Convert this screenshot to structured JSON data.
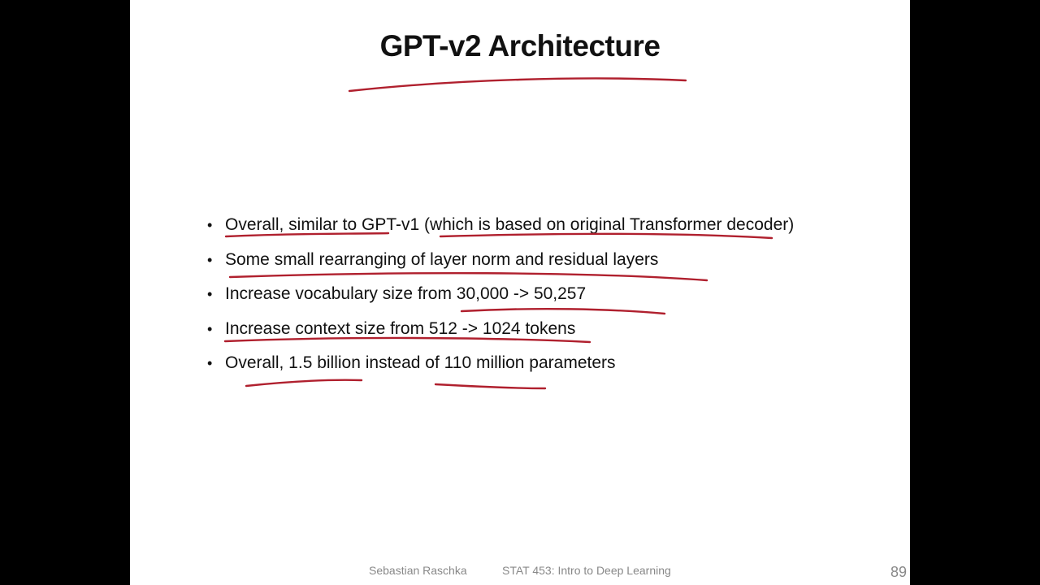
{
  "slide": {
    "title": "GPT-v2 Architecture",
    "bullets": [
      "Overall, similar to GPT-v1 (which is based on original Transformer decoder)",
      "Some small rearranging of layer norm and residual layers",
      "Increase vocabulary size from 30,000 -> 50,257",
      "Increase context size from 512 -> 1024 tokens",
      "Overall, 1.5 billion instead of 110 million parameters"
    ],
    "bullet_symbol": "•",
    "footer": {
      "author": "Sebastian Raschka",
      "course": "STAT 453: Intro to Deep Learning"
    },
    "page_number": "89"
  },
  "colors": {
    "background": "#000000",
    "slide": "#ffffff",
    "text": "#111111",
    "annotation": "#b0202e",
    "footer": "#888888"
  }
}
